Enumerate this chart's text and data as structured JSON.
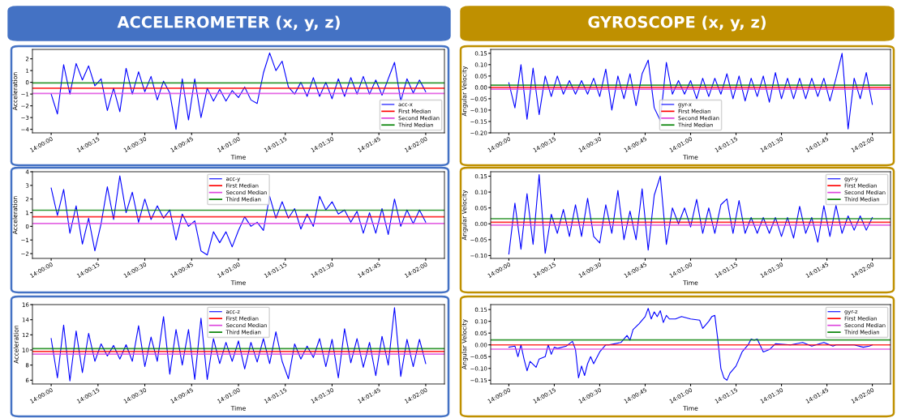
{
  "chart_data": [
    {
      "type": "line",
      "title": "ACCELEROMETER (x, y, z)",
      "xlabel": "Time",
      "ylabel": "Acceleration",
      "legend": "bottom right",
      "x": [
        14.0,
        14.000556,
        14.001111,
        14.001667,
        14.002222,
        14.002778,
        14.003333,
        14.003889,
        14.004444,
        14.005,
        14.005556,
        14.006111,
        14.006667,
        14.007222,
        14.007778,
        14.008333,
        14.008889,
        14.009444,
        14.01,
        14.010556,
        14.011111,
        14.011667,
        14.012222,
        14.012778,
        14.013333,
        14.013889,
        14.014444,
        14.015,
        14.015556,
        14.016111,
        14.016667,
        14.017222,
        14.017778,
        14.018333,
        14.018889,
        14.019444,
        14.02,
        14.020556,
        14.021111,
        14.021667,
        14.022222,
        14.022778,
        14.023333,
        14.023889,
        14.024444,
        14.025,
        14.025556,
        14.026111,
        14.026667,
        14.027222,
        14.027778,
        14.028333,
        14.028889,
        14.029444,
        14.03,
        14.030556,
        14.031111,
        14.031667,
        14.032222,
        14.032778,
        14.033333
      ],
      "series": [
        {
          "name": "acc-x",
          "color": "#0000ff",
          "values": [
            -1.0,
            -2.7,
            1.5,
            -1.0,
            1.6,
            0.2,
            1.4,
            -0.3,
            0.3,
            -2.4,
            -0.5,
            -2.5,
            1.2,
            -1.0,
            0.9,
            -0.8,
            0.5,
            -1.5,
            0.1,
            -0.9,
            -4.0,
            0.3,
            -3.2,
            0.3,
            -3.0,
            -0.5,
            -1.6,
            -0.6,
            -1.6,
            -0.7,
            -1.3,
            -0.4,
            -1.5,
            -1.8,
            0.8,
            2.5,
            1.0,
            1.8,
            -0.4,
            -1.0,
            0.0,
            -1.2,
            0.4,
            -1.2,
            0.0,
            -1.4,
            0.3,
            -1.2,
            0.4,
            -1.0,
            0.5,
            -1.0,
            0.2,
            -1.1,
            0.3,
            1.7,
            -1.6,
            0.3,
            -0.9,
            0.2,
            -0.8
          ]
        }
      ],
      "ref_lines": [
        {
          "axis": "y",
          "value": -0.5,
          "label": "First Median",
          "color": "#ff0000"
        },
        {
          "axis": "y",
          "value": -0.95,
          "label": "Second Median",
          "color": "#dd44dd"
        },
        {
          "axis": "y",
          "value": -0.05,
          "label": "Third Median",
          "color": "#008000"
        }
      ],
      "xlim": [
        13.998333,
        14.035
      ],
      "ylim": [
        -4.3,
        2.8
      ],
      "xticks": [
        {
          "value": 14.0,
          "label": "14:00:00"
        },
        {
          "value": 14.004167,
          "label": "14:00:15"
        },
        {
          "value": 14.008333,
          "label": "14:00:30"
        },
        {
          "value": 14.0125,
          "label": "14:00:45"
        },
        {
          "value": 14.016667,
          "label": "14:01:00"
        },
        {
          "value": 14.020833,
          "label": "14:01:15"
        },
        {
          "value": 14.025,
          "label": "14:01:30"
        },
        {
          "value": 14.029167,
          "label": "14:01:45"
        },
        {
          "value": 14.033333,
          "label": "14:02:00"
        }
      ],
      "yticks": [
        {
          "value": -4,
          "label": "−4"
        },
        {
          "value": -3,
          "label": "−3"
        },
        {
          "value": -2,
          "label": "−2"
        },
        {
          "value": -1,
          "label": "−1"
        },
        0,
        1,
        2
      ]
    },
    {
      "type": "line",
      "xlabel": "Time",
      "ylabel": "Acceleration",
      "legend": "top",
      "x": [
        14.0,
        14.000556,
        14.001111,
        14.001667,
        14.002222,
        14.002778,
        14.003333,
        14.003889,
        14.004444,
        14.005,
        14.005556,
        14.006111,
        14.006667,
        14.007222,
        14.007778,
        14.008333,
        14.008889,
        14.009444,
        14.01,
        14.010556,
        14.011111,
        14.011667,
        14.012222,
        14.012778,
        14.013333,
        14.013889,
        14.014444,
        14.015,
        14.015556,
        14.016111,
        14.016667,
        14.017222,
        14.017778,
        14.018333,
        14.018889,
        14.019444,
        14.02,
        14.020556,
        14.021111,
        14.021667,
        14.022222,
        14.022778,
        14.023333,
        14.023889,
        14.024444,
        14.025,
        14.025556,
        14.026111,
        14.026667,
        14.027222,
        14.027778,
        14.028333,
        14.028889,
        14.029444,
        14.03,
        14.030556,
        14.031111,
        14.031667,
        14.032222,
        14.032778,
        14.033333
      ],
      "series": [
        {
          "name": "acc-y",
          "color": "#0000ff",
          "values": [
            2.8,
            0.8,
            2.7,
            -0.5,
            1.5,
            -1.3,
            0.6,
            -1.8,
            0.2,
            2.9,
            0.5,
            3.7,
            1.0,
            2.5,
            0.3,
            2.0,
            0.5,
            1.5,
            0.6,
            1.2,
            -1.0,
            0.9,
            0.0,
            0.4,
            -1.8,
            -2.1,
            -0.4,
            -1.2,
            -0.4,
            -1.5,
            -0.3,
            0.7,
            0.0,
            0.3,
            -0.3,
            2.2,
            0.6,
            1.8,
            0.6,
            1.3,
            -0.2,
            0.9,
            0.0,
            2.2,
            1.2,
            1.8,
            0.9,
            1.2,
            0.3,
            1.1,
            -0.5,
            1.0,
            -0.5,
            1.3,
            -0.6,
            2.0,
            0.0,
            1.2,
            0.2,
            1.2,
            0.3
          ]
        }
      ],
      "ref_lines": [
        {
          "axis": "y",
          "value": 0.7,
          "label": "First Median",
          "color": "#ff0000"
        },
        {
          "axis": "y",
          "value": 0.21,
          "label": "Second Median",
          "color": "#dd44dd"
        },
        {
          "axis": "y",
          "value": 1.18,
          "label": "Third Median",
          "color": "#008000"
        }
      ],
      "xlim": [
        13.998333,
        14.035
      ],
      "ylim": [
        -2.35,
        4.0
      ],
      "xticks": [
        {
          "value": 14.0,
          "label": "14:00:00"
        },
        {
          "value": 14.004167,
          "label": "14:00:15"
        },
        {
          "value": 14.008333,
          "label": "14:00:30"
        },
        {
          "value": 14.0125,
          "label": "14:00:45"
        },
        {
          "value": 14.016667,
          "label": "14:01:00"
        },
        {
          "value": 14.020833,
          "label": "14:01:15"
        },
        {
          "value": 14.025,
          "label": "14:01:30"
        },
        {
          "value": 14.029167,
          "label": "14:01:45"
        },
        {
          "value": 14.033333,
          "label": "14:02:00"
        }
      ],
      "yticks": [
        {
          "value": -2,
          "label": "−2"
        },
        {
          "value": -1,
          "label": "−1"
        },
        0,
        1,
        2,
        3,
        4
      ]
    },
    {
      "type": "line",
      "xlabel": "Time",
      "ylabel": "Acceleration",
      "legend": "top",
      "x": [
        14.0,
        14.000556,
        14.001111,
        14.001667,
        14.002222,
        14.002778,
        14.003333,
        14.003889,
        14.004444,
        14.005,
        14.005556,
        14.006111,
        14.006667,
        14.007222,
        14.007778,
        14.008333,
        14.008889,
        14.009444,
        14.01,
        14.010556,
        14.011111,
        14.011667,
        14.012222,
        14.012778,
        14.013333,
        14.013889,
        14.014444,
        14.015,
        14.015556,
        14.016111,
        14.016667,
        14.017222,
        14.017778,
        14.018333,
        14.018889,
        14.019444,
        14.02,
        14.020556,
        14.021111,
        14.021667,
        14.022222,
        14.022778,
        14.023333,
        14.023889,
        14.024444,
        14.025,
        14.025556,
        14.026111,
        14.026667,
        14.027222,
        14.027778,
        14.028333,
        14.028889,
        14.029444,
        14.03,
        14.030556,
        14.031111,
        14.031667,
        14.032222,
        14.032778,
        14.033333
      ],
      "series": [
        {
          "name": "acc-z",
          "color": "#0000ff",
          "values": [
            11.5,
            6.3,
            13.3,
            5.9,
            12.5,
            7.0,
            12.2,
            8.5,
            10.8,
            9.2,
            10.6,
            8.8,
            10.7,
            8.5,
            13.2,
            7.8,
            11.7,
            8.5,
            14.4,
            6.8,
            12.7,
            8.0,
            12.7,
            6.1,
            14.2,
            6.1,
            11.5,
            8.2,
            11.0,
            8.5,
            11.2,
            7.5,
            11.0,
            8.4,
            11.5,
            8.2,
            12.4,
            8.5,
            6.2,
            10.8,
            8.8,
            10.5,
            9.0,
            11.5,
            7.8,
            11.4,
            6.3,
            12.8,
            8.3,
            11.5,
            7.7,
            11.0,
            6.6,
            11.8,
            8.0,
            15.6,
            6.5,
            11.4,
            7.8,
            11.4,
            8.2
          ]
        }
      ],
      "ref_lines": [
        {
          "axis": "y",
          "value": 9.8,
          "label": "First Median",
          "color": "#ff0000"
        },
        {
          "axis": "y",
          "value": 9.45,
          "label": "Second Median",
          "color": "#dd44dd"
        },
        {
          "axis": "y",
          "value": 10.17,
          "label": "Third Median",
          "color": "#008000"
        }
      ],
      "xlim": [
        13.998333,
        14.035
      ],
      "ylim": [
        5.5,
        16.0
      ],
      "xticks": [
        {
          "value": 14.0,
          "label": "14:00:00"
        },
        {
          "value": 14.004167,
          "label": "14:00:15"
        },
        {
          "value": 14.008333,
          "label": "14:00:30"
        },
        {
          "value": 14.0125,
          "label": "14:00:45"
        },
        {
          "value": 14.016667,
          "label": "14:01:00"
        },
        {
          "value": 14.020833,
          "label": "14:01:15"
        },
        {
          "value": 14.025,
          "label": "14:01:30"
        },
        {
          "value": 14.029167,
          "label": "14:01:45"
        },
        {
          "value": 14.033333,
          "label": "14:02:00"
        }
      ],
      "yticks": [
        6,
        8,
        10,
        12,
        14,
        16
      ]
    },
    {
      "type": "line",
      "title": "GYROSCOPE (x, y, z)",
      "xlabel": "Time",
      "ylabel": "Angular Velocity",
      "legend": "bottom",
      "x": [
        14.0,
        14.000556,
        14.001111,
        14.001667,
        14.002222,
        14.002778,
        14.003333,
        14.003889,
        14.004444,
        14.005,
        14.005556,
        14.006111,
        14.006667,
        14.007222,
        14.007778,
        14.008333,
        14.008889,
        14.009444,
        14.01,
        14.010556,
        14.011111,
        14.011667,
        14.012222,
        14.012778,
        14.013333,
        14.013889,
        14.014444,
        14.015,
        14.015556,
        14.016111,
        14.016667,
        14.017222,
        14.017778,
        14.018333,
        14.018889,
        14.019444,
        14.02,
        14.020556,
        14.021111,
        14.021667,
        14.022222,
        14.022778,
        14.023333,
        14.023889,
        14.024444,
        14.025,
        14.025556,
        14.026111,
        14.026667,
        14.027222,
        14.027778,
        14.028333,
        14.028889,
        14.029444,
        14.03,
        14.030556,
        14.031111,
        14.031667,
        14.032222,
        14.032778,
        14.033333
      ],
      "series": [
        {
          "name": "gyr-x",
          "color": "#0000ff",
          "values": [
            0.02,
            -0.09,
            0.1,
            -0.14,
            0.085,
            -0.12,
            0.05,
            -0.04,
            0.05,
            -0.03,
            0.03,
            -0.03,
            0.03,
            -0.03,
            0.04,
            -0.04,
            0.08,
            -0.1,
            0.05,
            -0.05,
            0.06,
            -0.08,
            0.06,
            0.12,
            -0.09,
            -0.146,
            0.11,
            -0.03,
            0.03,
            -0.03,
            0.03,
            -0.05,
            0.04,
            -0.04,
            0.04,
            -0.03,
            0.06,
            -0.05,
            0.05,
            -0.06,
            0.04,
            -0.04,
            0.05,
            -0.065,
            0.065,
            -0.05,
            0.04,
            -0.05,
            0.04,
            -0.05,
            0.04,
            -0.04,
            0.04,
            -0.06,
            0.04,
            0.15,
            -0.183,
            0.04,
            -0.05,
            0.065,
            -0.075
          ]
        }
      ],
      "ref_lines": [
        {
          "axis": "y",
          "value": 0.0,
          "label": "First Median",
          "color": "#ff0000"
        },
        {
          "axis": "y",
          "value": -0.008,
          "label": "Second Median",
          "color": "#dd44dd"
        },
        {
          "axis": "y",
          "value": 0.01,
          "label": "Third Median",
          "color": "#008000"
        }
      ],
      "xlim": [
        13.998333,
        14.035
      ],
      "ylim": [
        -0.2,
        0.167
      ],
      "xticks": [
        {
          "value": 14.0,
          "label": "14:00:00"
        },
        {
          "value": 14.004167,
          "label": "14:00:15"
        },
        {
          "value": 14.008333,
          "label": "14:00:30"
        },
        {
          "value": 14.0125,
          "label": "14:00:45"
        },
        {
          "value": 14.016667,
          "label": "14:01:00"
        },
        {
          "value": 14.020833,
          "label": "14:01:15"
        },
        {
          "value": 14.025,
          "label": "14:01:30"
        },
        {
          "value": 14.029167,
          "label": "14:01:45"
        },
        {
          "value": 14.033333,
          "label": "14:02:00"
        }
      ],
      "yticks": [
        {
          "value": -0.2,
          "label": "−0.20"
        },
        {
          "value": -0.15,
          "label": "−0.15"
        },
        {
          "value": -0.1,
          "label": "−0.10"
        },
        {
          "value": -0.05,
          "label": "−0.05"
        },
        {
          "value": 0.0,
          "label": "0.00"
        },
        {
          "value": 0.05,
          "label": "0.05"
        },
        {
          "value": 0.1,
          "label": "0.10"
        },
        {
          "value": 0.15,
          "label": "0.15"
        }
      ]
    },
    {
      "type": "line",
      "xlabel": "Time",
      "ylabel": "Angular Velocity",
      "legend": "top right",
      "x": [
        14.0,
        14.000556,
        14.001111,
        14.001667,
        14.002222,
        14.002778,
        14.003333,
        14.003889,
        14.004444,
        14.005,
        14.005556,
        14.006111,
        14.006667,
        14.007222,
        14.007778,
        14.008333,
        14.008889,
        14.009444,
        14.01,
        14.010556,
        14.011111,
        14.011667,
        14.012222,
        14.012778,
        14.013333,
        14.013889,
        14.014444,
        14.015,
        14.015556,
        14.016111,
        14.016667,
        14.017222,
        14.017778,
        14.018333,
        14.018889,
        14.019444,
        14.02,
        14.020556,
        14.021111,
        14.021667,
        14.022222,
        14.022778,
        14.023333,
        14.023889,
        14.024444,
        14.025,
        14.025556,
        14.026111,
        14.026667,
        14.027222,
        14.027778,
        14.028333,
        14.028889,
        14.029444,
        14.03,
        14.030556,
        14.031111,
        14.031667,
        14.032222,
        14.032778,
        14.033333
      ],
      "series": [
        {
          "name": "gyr-y",
          "color": "#0000ff",
          "values": [
            -0.095,
            0.065,
            -0.08,
            0.095,
            -0.065,
            0.155,
            -0.093,
            0.03,
            -0.03,
            0.045,
            -0.04,
            0.06,
            -0.04,
            0.08,
            -0.04,
            -0.06,
            0.06,
            -0.03,
            0.105,
            -0.05,
            0.04,
            -0.05,
            0.11,
            -0.083,
            0.09,
            0.15,
            -0.065,
            0.05,
            0.0,
            0.05,
            -0.01,
            0.077,
            -0.03,
            0.05,
            -0.03,
            0.06,
            0.078,
            -0.03,
            0.073,
            -0.03,
            0.02,
            -0.03,
            0.02,
            -0.03,
            0.02,
            -0.04,
            0.02,
            -0.045,
            0.055,
            -0.03,
            0.02,
            -0.058,
            0.057,
            -0.04,
            0.058,
            -0.03,
            0.025,
            -0.02,
            0.025,
            -0.02,
            0.02
          ]
        }
      ],
      "ref_lines": [
        {
          "axis": "y",
          "value": 0.005,
          "label": "First Median",
          "color": "#ff0000"
        },
        {
          "axis": "y",
          "value": -0.004,
          "label": "Second Median",
          "color": "#dd44dd"
        },
        {
          "axis": "y",
          "value": 0.016,
          "label": "Third Median",
          "color": "#008000"
        }
      ],
      "xlim": [
        13.998333,
        14.035
      ],
      "ylim": [
        -0.109,
        0.164
      ],
      "xticks": [
        {
          "value": 14.0,
          "label": "14:00:00"
        },
        {
          "value": 14.004167,
          "label": "14:00:15"
        },
        {
          "value": 14.008333,
          "label": "14:00:30"
        },
        {
          "value": 14.0125,
          "label": "14:00:45"
        },
        {
          "value": 14.016667,
          "label": "14:01:00"
        },
        {
          "value": 14.020833,
          "label": "14:01:15"
        },
        {
          "value": 14.025,
          "label": "14:01:30"
        },
        {
          "value": 14.029167,
          "label": "14:01:45"
        },
        {
          "value": 14.033333,
          "label": "14:02:00"
        }
      ],
      "yticks": [
        {
          "value": -0.1,
          "label": "−0.10"
        },
        {
          "value": -0.05,
          "label": "−0.05"
        },
        {
          "value": 0.0,
          "label": "0.00"
        },
        {
          "value": 0.05,
          "label": "0.05"
        },
        {
          "value": 0.1,
          "label": "0.10"
        },
        {
          "value": 0.15,
          "label": "0.15"
        }
      ]
    },
    {
      "type": "line",
      "xlabel": "Time",
      "ylabel": "Angular Velocity",
      "legend": "top right",
      "x": [
        14.0,
        14.000556,
        14.000833,
        14.001111,
        14.001389,
        14.001667,
        14.001944,
        14.0025,
        14.002778,
        14.003333,
        14.003611,
        14.003889,
        14.004167,
        14.004444,
        14.005278,
        14.005833,
        14.006111,
        14.006389,
        14.006667,
        14.006944,
        14.007222,
        14.0075,
        14.007778,
        14.008333,
        14.008889,
        14.009167,
        14.010278,
        14.010833,
        14.011111,
        14.011389,
        14.011944,
        14.0125,
        14.012778,
        14.013056,
        14.013333,
        14.013611,
        14.013889,
        14.014167,
        14.014444,
        14.014722,
        14.015278,
        14.015833,
        14.016667,
        14.0175,
        14.017778,
        14.018333,
        14.018611,
        14.018889,
        14.019167,
        14.019444,
        14.019722,
        14.02,
        14.020278,
        14.020833,
        14.021389,
        14.021944,
        14.022222,
        14.0225,
        14.022778,
        14.023333,
        14.023889,
        14.024444,
        14.025833,
        14.026944,
        14.027778,
        14.028889,
        14.029722,
        14.03,
        14.030833,
        14.031667,
        14.0325,
        14.033056,
        14.033333
      ],
      "series": [
        {
          "name": "gyr-z",
          "color": "#0000ff",
          "values": [
            -0.01,
            -0.005,
            -0.05,
            0.0,
            -0.06,
            -0.11,
            -0.07,
            -0.095,
            -0.06,
            -0.05,
            0.0,
            -0.04,
            -0.01,
            -0.015,
            -0.005,
            0.015,
            -0.02,
            -0.14,
            -0.09,
            -0.13,
            -0.08,
            -0.05,
            -0.08,
            -0.03,
            0.0,
            0.0,
            0.01,
            0.04,
            0.02,
            0.065,
            0.09,
            0.12,
            0.155,
            0.11,
            0.14,
            0.12,
            0.145,
            0.095,
            0.125,
            0.11,
            0.11,
            0.12,
            0.11,
            0.105,
            0.07,
            0.1,
            0.12,
            0.125,
            0.02,
            -0.1,
            -0.14,
            -0.15,
            -0.12,
            -0.09,
            -0.03,
            0.0,
            0.025,
            0.02,
            0.025,
            -0.03,
            -0.02,
            0.005,
            0.0,
            0.01,
            -0.005,
            0.01,
            -0.005,
            0.0,
            0.0,
            0.0,
            -0.01,
            -0.005,
            0.0
          ]
        }
      ],
      "ref_lines": [
        {
          "axis": "y",
          "value": 0.0,
          "label": "First Median",
          "color": "#ff0000"
        },
        {
          "axis": "y",
          "value": -0.018,
          "label": "Second Median",
          "color": "#dd44dd"
        },
        {
          "axis": "y",
          "value": 0.021,
          "label": "Third Median",
          "color": "#008000"
        }
      ],
      "xlim": [
        13.998333,
        14.035
      ],
      "ylim": [
        -0.166,
        0.171
      ],
      "xticks": [
        {
          "value": 14.0,
          "label": "14:00:00"
        },
        {
          "value": 14.004167,
          "label": "14:00:15"
        },
        {
          "value": 14.008333,
          "label": "14:00:30"
        },
        {
          "value": 14.0125,
          "label": "14:00:45"
        },
        {
          "value": 14.016667,
          "label": "14:01:00"
        },
        {
          "value": 14.020833,
          "label": "14:01:15"
        },
        {
          "value": 14.025,
          "label": "14:01:30"
        },
        {
          "value": 14.029167,
          "label": "14:01:45"
        },
        {
          "value": 14.033333,
          "label": "14:02:00"
        }
      ],
      "yticks": [
        {
          "value": -0.15,
          "label": "−0.15"
        },
        {
          "value": -0.1,
          "label": "−0.10"
        },
        {
          "value": -0.05,
          "label": "−0.05"
        },
        {
          "value": 0.0,
          "label": "0.00"
        },
        {
          "value": 0.05,
          "label": "0.05"
        },
        {
          "value": 0.1,
          "label": "0.10"
        },
        {
          "value": 0.15,
          "label": "0.15"
        }
      ]
    }
  ]
}
